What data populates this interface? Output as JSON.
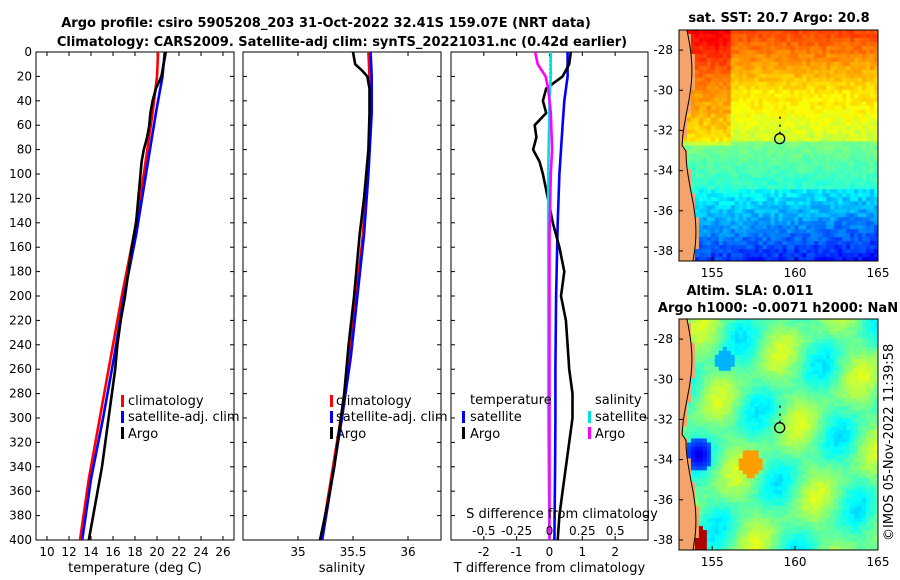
{
  "header": {
    "title_line1": "Argo profile: csiro 5905208_203 31-Oct-2022 32.41S 159.07E (NRT data)",
    "title_line2": "Climatology: CARS2009. Satellite-adj clim: synTS_20221031.nc (0.42d earlier)"
  },
  "maps": {
    "sst_title": "sat. SST: 20.7 Argo: 20.8",
    "sla_title_line1": "Altim. SLA: 0.011",
    "sla_title_line2": "Argo h1000: -0.0071 h2000: NaN",
    "lat_ticks": [
      "-28",
      "-30",
      "-32",
      "-34",
      "-36",
      "-38"
    ],
    "lon_ticks": [
      "155",
      "160",
      "165"
    ],
    "lon_range": [
      153,
      165
    ],
    "lat_range": [
      -27,
      -38.5
    ],
    "argo_position": {
      "lon": 159.07,
      "lat": -32.41
    }
  },
  "stamp": "©IMOS 05-Nov-2022 11:39:58",
  "chart_data": [
    {
      "type": "line",
      "title": "",
      "xlabel": "temperature (deg C)",
      "ylabel": "",
      "xlim": [
        9,
        27
      ],
      "ylim": [
        400,
        0
      ],
      "xticks": [
        "10",
        "12",
        "14",
        "16",
        "18",
        "20",
        "22",
        "24",
        "26"
      ],
      "yticks": [
        "0",
        "20",
        "40",
        "60",
        "80",
        "100",
        "120",
        "140",
        "160",
        "180",
        "200",
        "220",
        "240",
        "260",
        "280",
        "300",
        "320",
        "340",
        "360",
        "380",
        "400"
      ],
      "legend": [
        "climatology",
        "satellite-adj. clim",
        "Argo"
      ],
      "legend_position": "lower-right",
      "series": [
        {
          "name": "climatology",
          "color": "#ff0000",
          "depth": [
            0,
            20,
            50,
            100,
            150,
            200,
            250,
            300,
            350,
            400
          ],
          "values": [
            20.1,
            20.0,
            19.6,
            18.8,
            17.9,
            16.8,
            15.8,
            14.8,
            13.8,
            13.0
          ]
        },
        {
          "name": "satellite-adj. clim",
          "color": "#0000ff",
          "depth": [
            0,
            20,
            50,
            100,
            150,
            200,
            250,
            300,
            350,
            400
          ],
          "values": [
            20.7,
            20.5,
            19.9,
            19.0,
            18.1,
            17.0,
            16.1,
            15.1,
            14.0,
            13.2
          ]
        },
        {
          "name": "Argo",
          "color": "#000000",
          "depth": [
            0,
            10,
            20,
            30,
            40,
            50,
            60,
            70,
            80,
            90,
            100,
            120,
            140,
            160,
            180,
            200,
            220,
            240,
            260,
            280,
            300,
            320,
            340,
            360,
            380,
            400
          ],
          "values": [
            20.8,
            20.6,
            20.4,
            19.9,
            19.6,
            19.4,
            19.3,
            19.1,
            18.8,
            18.6,
            18.5,
            18.3,
            18.1,
            17.7,
            17.4,
            17.1,
            16.7,
            16.4,
            16.2,
            15.9,
            15.6,
            15.3,
            15.0,
            14.6,
            14.2,
            13.8
          ]
        }
      ]
    },
    {
      "type": "line",
      "title": "",
      "xlabel": "salinity",
      "ylabel": "",
      "xlim": [
        34.5,
        36.3
      ],
      "ylim": [
        400,
        0
      ],
      "xticks": [
        "35",
        "35.5",
        "36"
      ],
      "legend": [
        "climatology",
        "satellite-adj. clim",
        "Argo"
      ],
      "legend_position": "lower-right",
      "series": [
        {
          "name": "climatology",
          "color": "#ff0000",
          "depth": [
            0,
            20,
            50,
            100,
            150,
            200,
            250,
            300,
            350,
            400
          ],
          "values": [
            35.64,
            35.65,
            35.66,
            35.63,
            35.59,
            35.53,
            35.47,
            35.39,
            35.3,
            35.21
          ]
        },
        {
          "name": "satellite-adj. clim",
          "color": "#0000ff",
          "depth": [
            0,
            20,
            50,
            100,
            150,
            200,
            250,
            300,
            350,
            400
          ],
          "values": [
            35.66,
            35.67,
            35.67,
            35.64,
            35.6,
            35.54,
            35.48,
            35.4,
            35.31,
            35.22
          ]
        },
        {
          "name": "Argo",
          "color": "#000000",
          "depth": [
            0,
            10,
            15,
            20,
            30,
            50,
            80,
            100,
            120,
            150,
            180,
            200,
            240,
            280,
            300,
            340,
            370,
            400
          ],
          "values": [
            35.5,
            35.52,
            35.58,
            35.63,
            35.65,
            35.65,
            35.64,
            35.62,
            35.6,
            35.56,
            35.53,
            35.51,
            35.46,
            35.42,
            35.39,
            35.33,
            35.27,
            35.2
          ]
        }
      ]
    },
    {
      "type": "line",
      "title": "",
      "xlabel": "T difference from climatology",
      "ylabel": "",
      "xlim": [
        -3,
        3
      ],
      "ylim": [
        400,
        0
      ],
      "xticks": [
        "-2",
        "-1",
        "0",
        "1",
        "2"
      ],
      "secondary_x": {
        "label": "S difference from climatology",
        "range": [
          -0.75,
          0.75
        ],
        "ticks": [
          "-0.5",
          "-0.25",
          "0",
          "0.25",
          "0.5"
        ]
      },
      "legend_titles": [
        "temperature",
        "salinity"
      ],
      "legend": [
        "satellite",
        "Argo",
        "satellite",
        "Argo"
      ],
      "legend_position": "lower",
      "series": [
        {
          "name": "temperature satellite",
          "color": "#0000ff",
          "axis": "T",
          "depth": [
            0,
            20,
            40,
            60,
            80,
            100,
            140,
            200,
            260,
            300,
            340,
            400
          ],
          "values": [
            0.55,
            0.55,
            0.45,
            0.4,
            0.35,
            0.3,
            0.25,
            0.2,
            0.18,
            0.18,
            0.17,
            0.15
          ]
        },
        {
          "name": "temperature Argo",
          "color": "#000000",
          "axis": "T",
          "depth": [
            0,
            10,
            20,
            30,
            40,
            50,
            60,
            70,
            80,
            90,
            100,
            120,
            140,
            160,
            180,
            200,
            220,
            240,
            260,
            280,
            300,
            320,
            340,
            360,
            380,
            400
          ],
          "values": [
            0.65,
            0.6,
            0.4,
            -0.1,
            -0.2,
            -0.1,
            -0.45,
            -0.4,
            -0.5,
            -0.3,
            -0.2,
            -0.05,
            0.1,
            0.3,
            0.45,
            0.35,
            0.5,
            0.55,
            0.6,
            0.7,
            0.7,
            0.6,
            0.5,
            0.4,
            0.3,
            0.25
          ]
        },
        {
          "name": "salinity satellite",
          "color": "#00e0e0",
          "axis": "S",
          "depth": [
            0,
            20,
            40,
            100,
            200,
            300,
            400
          ],
          "values": [
            0.01,
            0.01,
            0.0,
            -0.01,
            -0.01,
            -0.01,
            0.0
          ]
        },
        {
          "name": "salinity Argo",
          "color": "#ff00ff",
          "axis": "S",
          "depth": [
            0,
            10,
            20,
            30,
            50,
            80,
            100,
            150,
            200,
            250,
            300,
            350,
            400
          ],
          "values": [
            -0.11,
            -0.09,
            -0.03,
            -0.01,
            0.01,
            0.02,
            0.01,
            0.0,
            0.0,
            0.0,
            0.0,
            0.0,
            0.0
          ]
        }
      ]
    }
  ]
}
